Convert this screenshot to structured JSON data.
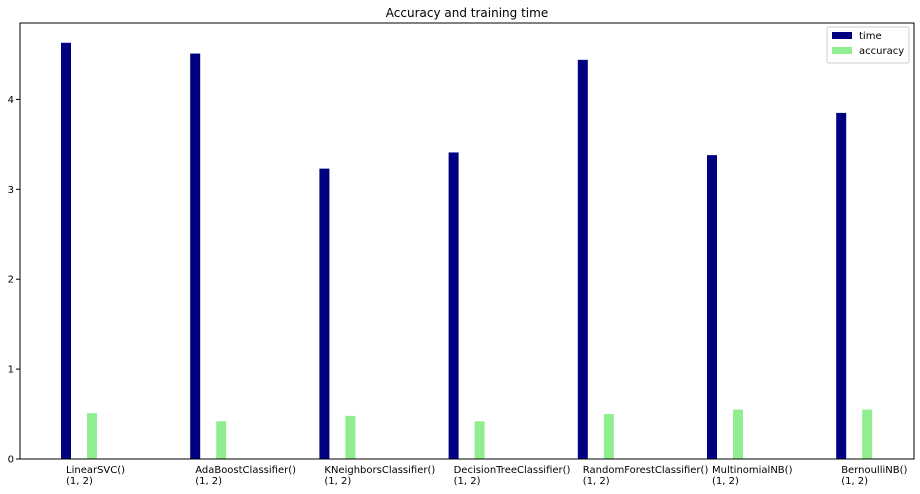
{
  "chart_data": {
    "type": "bar",
    "title": "Accuracy and training time",
    "xlabel": "",
    "ylabel": "",
    "categories": [
      [
        "LinearSVC()",
        "(1, 2)"
      ],
      [
        "AdaBoostClassifier()",
        "(1, 2)"
      ],
      [
        "KNeighborsClassifier()",
        "(1, 2)"
      ],
      [
        "DecisionTreeClassifier()",
        "(1, 2)"
      ],
      [
        "RandomForestClassifier()",
        "(1, 2)"
      ],
      [
        "MultinomialNB()",
        "(1, 2)"
      ],
      [
        "BernoulliNB()",
        "(1, 2)"
      ]
    ],
    "series": [
      {
        "name": "time",
        "color": "#000080",
        "values": [
          4.63,
          4.51,
          3.23,
          3.41,
          4.44,
          3.38,
          3.85
        ]
      },
      {
        "name": "accuracy",
        "color": "#90ee90",
        "values": [
          0.51,
          0.42,
          0.48,
          0.42,
          0.5,
          0.55,
          0.55
        ]
      }
    ],
    "ylim": [
      0,
      4.85
    ],
    "yticks": [
      "0",
      "1",
      "2",
      "3",
      "4"
    ],
    "legend_position": "top-right",
    "grid": false
  }
}
